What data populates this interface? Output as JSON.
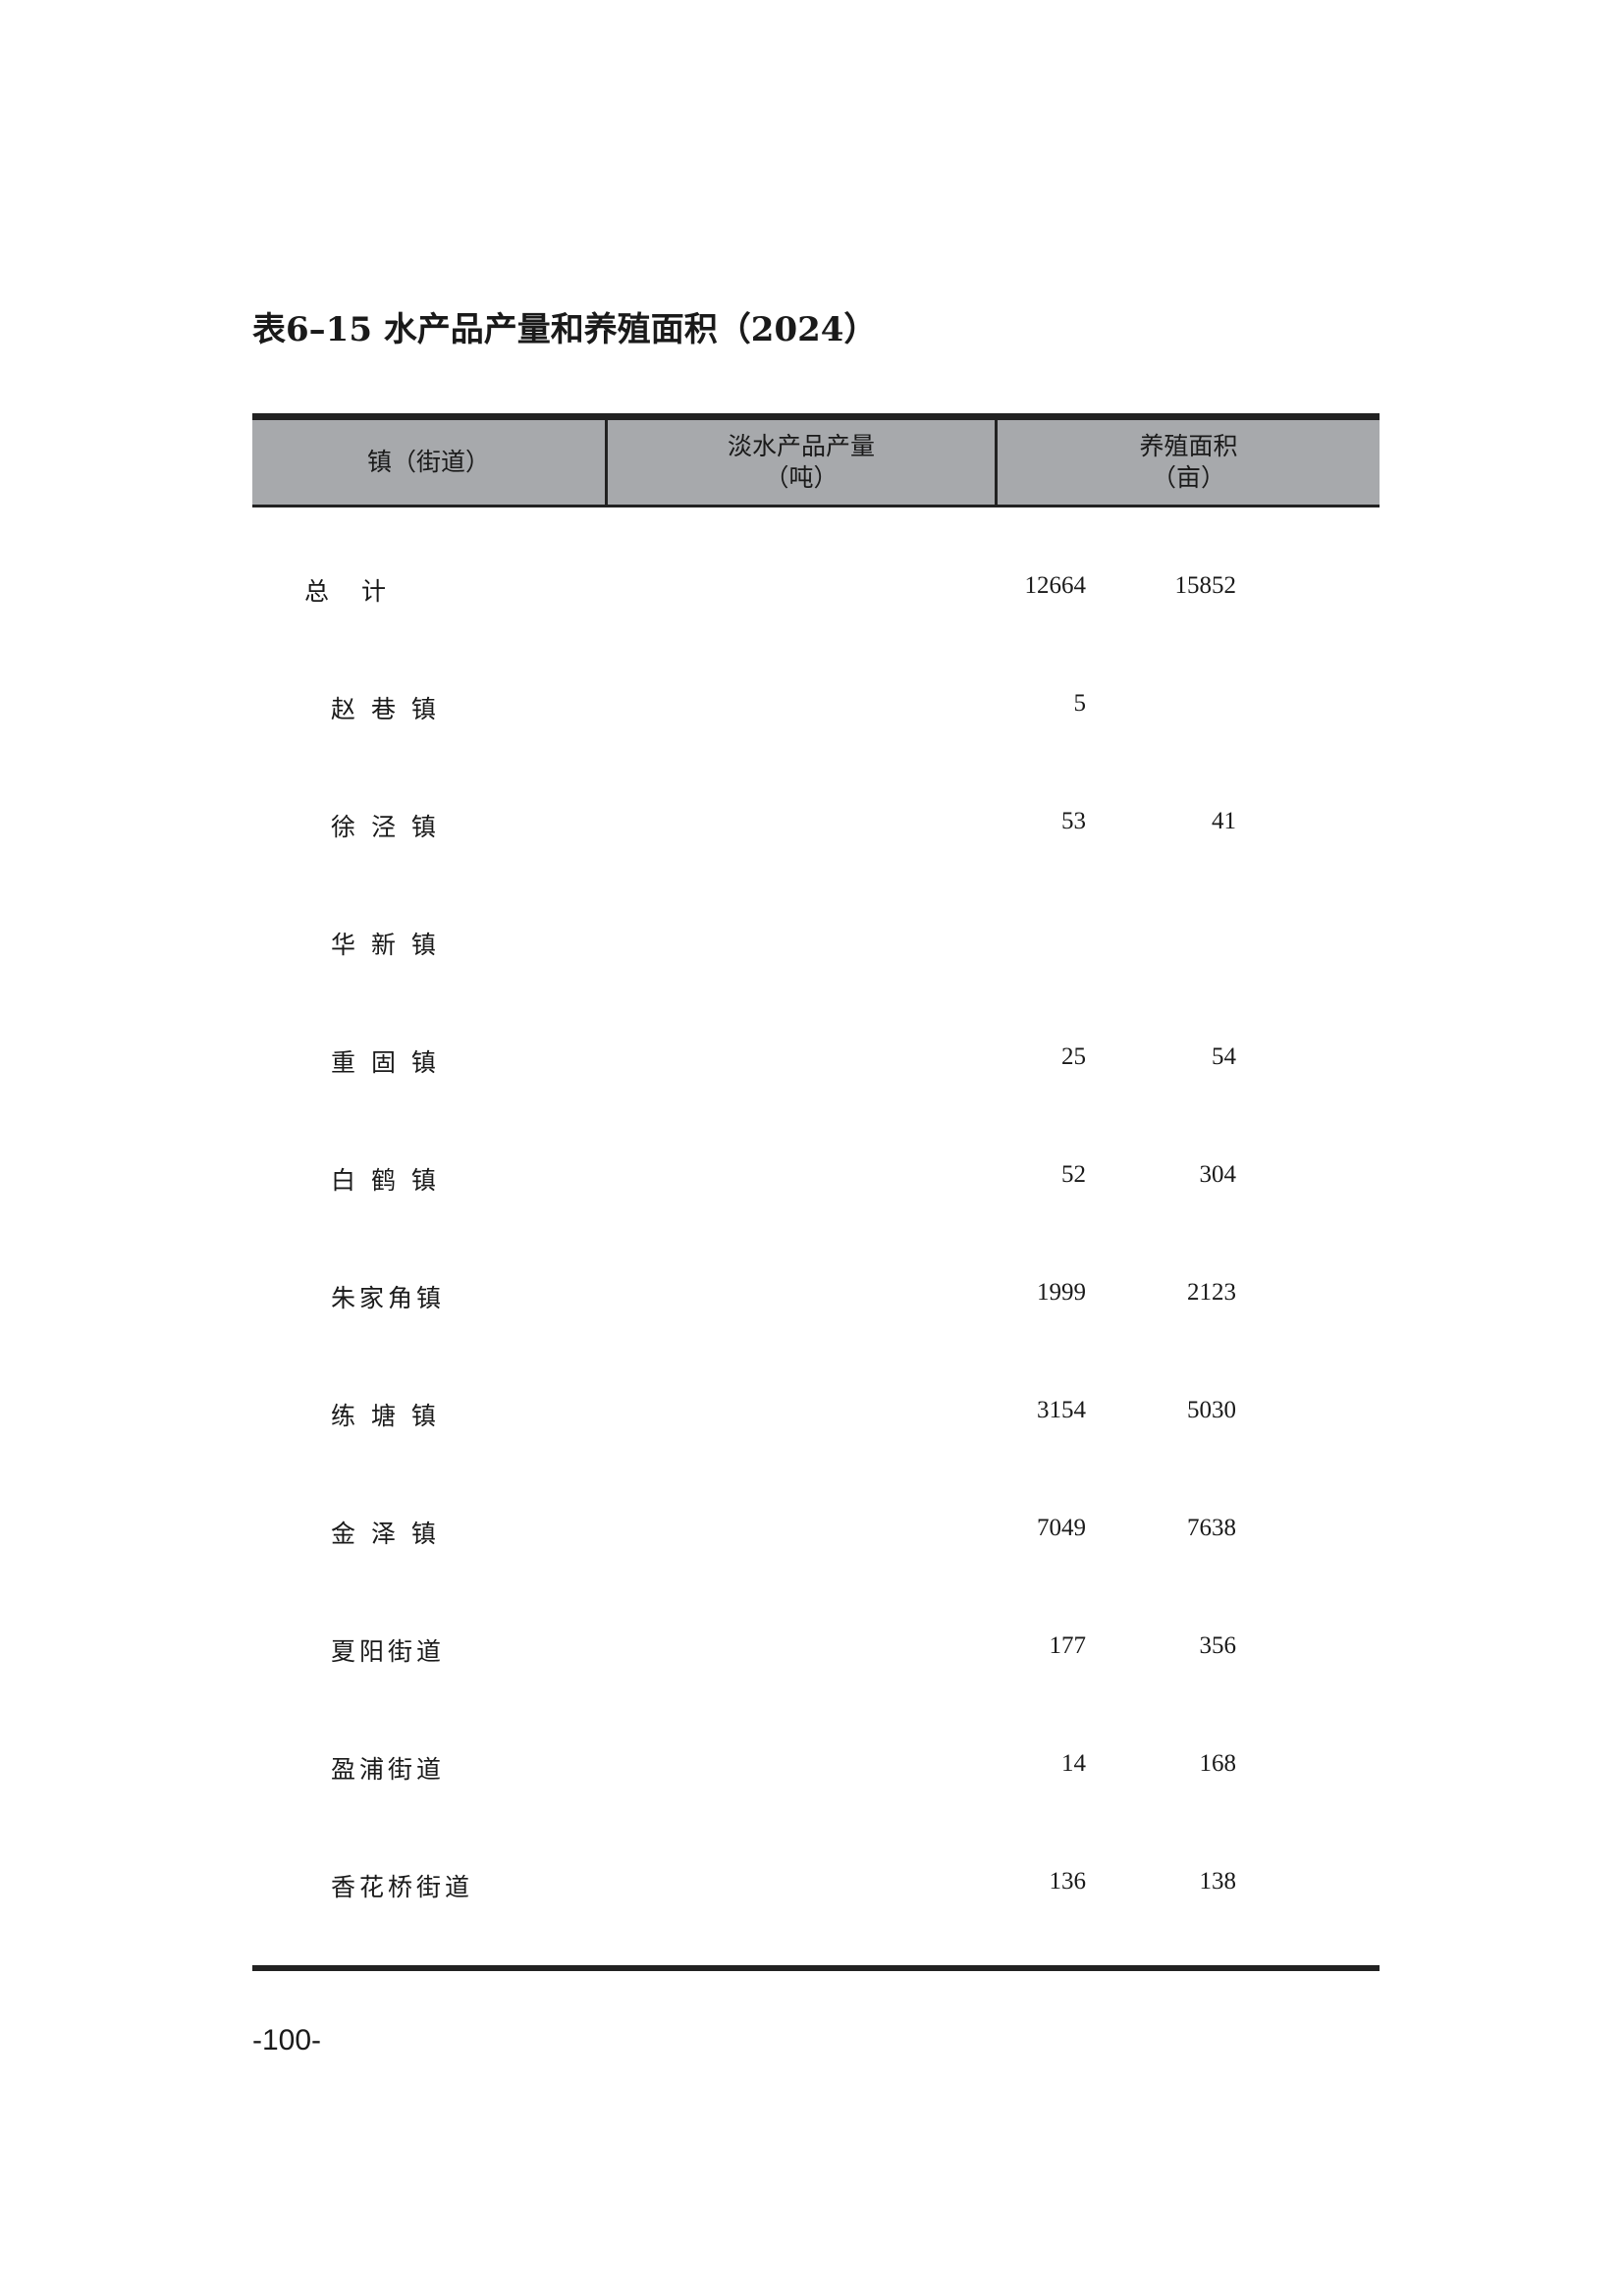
{
  "title": "表6–15  水产品产量和养殖面积（2024）",
  "table": {
    "headers": [
      {
        "line1": "镇（街道）",
        "line2": ""
      },
      {
        "line1": "淡水产品产量",
        "line2": "（吨）"
      },
      {
        "line1": "养殖面积",
        "line2": "（亩）"
      }
    ],
    "rows": [
      {
        "name": "总　计",
        "output": "12664",
        "area": "15852"
      },
      {
        "name": "赵 巷 镇",
        "output": "5",
        "area": ""
      },
      {
        "name": "徐 泾 镇",
        "output": "53",
        "area": "41"
      },
      {
        "name": "华 新 镇",
        "output": "",
        "area": ""
      },
      {
        "name": "重 固 镇",
        "output": "25",
        "area": "54"
      },
      {
        "name": "白 鹤 镇",
        "output": "52",
        "area": "304"
      },
      {
        "name": "朱家角镇",
        "output": "1999",
        "area": "2123"
      },
      {
        "name": "练 塘 镇",
        "output": "3154",
        "area": "5030"
      },
      {
        "name": "金 泽 镇",
        "output": "7049",
        "area": "7638"
      },
      {
        "name": "夏阳街道",
        "output": "177",
        "area": "356"
      },
      {
        "name": "盈浦街道",
        "output": "14",
        "area": "168"
      },
      {
        "name": "香花桥街道",
        "output": "136",
        "area": "138"
      }
    ]
  },
  "page_number": "-100-"
}
